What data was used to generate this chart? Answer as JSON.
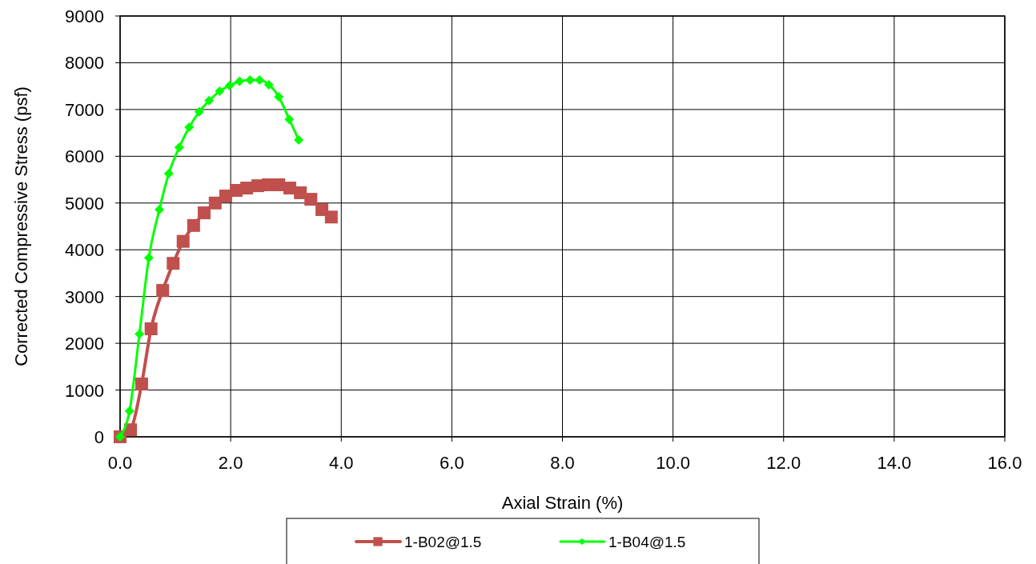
{
  "chart_data": {
    "type": "line",
    "xlabel": "Axial Strain (%)",
    "ylabel": "Corrected Compressive Stress (psf)",
    "xlim": [
      0,
      16
    ],
    "xticks": [
      {
        "value": 0,
        "label": "0.0"
      },
      {
        "value": 2,
        "label": "2.0"
      },
      {
        "value": 4,
        "label": "4.0"
      },
      {
        "value": 6,
        "label": "6.0"
      },
      {
        "value": 8,
        "label": "8.0"
      },
      {
        "value": 10,
        "label": "10.0"
      },
      {
        "value": 12,
        "label": "12.0"
      },
      {
        "value": 14,
        "label": "14.0"
      },
      {
        "value": 16,
        "label": "16.0"
      }
    ],
    "ylim": [
      0,
      9000
    ],
    "yticks": [
      0,
      1000,
      2000,
      3000,
      4000,
      5000,
      6000,
      7000,
      8000,
      9000
    ],
    "grid": true,
    "legend": "bottom",
    "series": [
      {
        "name": "1-B02@1.5",
        "color": "#c0504d",
        "marker": "square",
        "x": [
          0,
          0.19,
          0.39,
          0.56,
          0.77,
          0.96,
          1.14,
          1.33,
          1.52,
          1.72,
          1.91,
          2.1,
          2.29,
          2.49,
          2.68,
          2.87,
          3.07,
          3.26,
          3.45,
          3.65,
          3.82
        ],
        "values": [
          0,
          150,
          1130,
          2310,
          3130,
          3710,
          4180,
          4520,
          4790,
          5000,
          5150,
          5270,
          5320,
          5370,
          5390,
          5390,
          5320,
          5220,
          5080,
          4860,
          4700
        ]
      },
      {
        "name": "1-B04@1.5",
        "color": "#00ff00",
        "marker": "diamond",
        "x": [
          0,
          0.17,
          0.35,
          0.52,
          0.71,
          0.88,
          1.07,
          1.25,
          1.43,
          1.61,
          1.8,
          1.98,
          2.16,
          2.35,
          2.52,
          2.69,
          2.87,
          3.06,
          3.23
        ],
        "values": [
          0,
          550,
          2200,
          3830,
          4860,
          5630,
          6190,
          6620,
          6950,
          7190,
          7390,
          7510,
          7600,
          7630,
          7630,
          7530,
          7270,
          6790,
          6350
        ]
      }
    ]
  }
}
